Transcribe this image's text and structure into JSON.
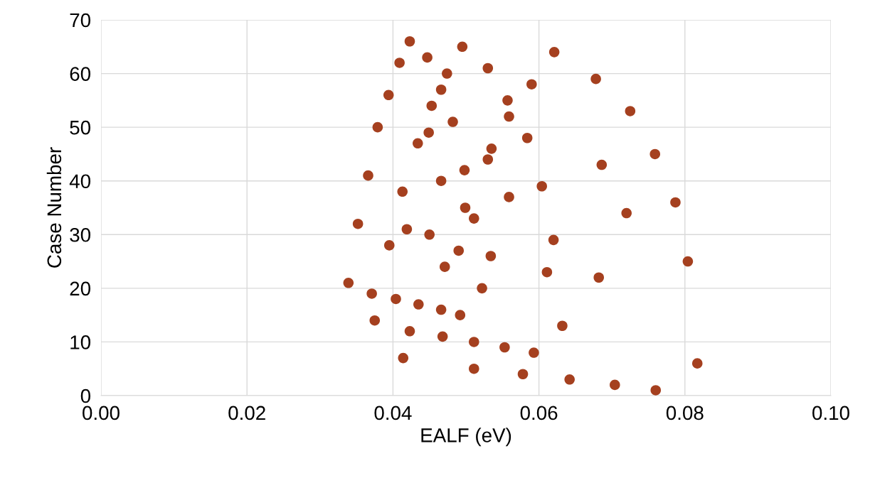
{
  "chart_data": {
    "type": "scatter",
    "xlabel": "EALF (eV)",
    "ylabel": "Case Number",
    "xlim": [
      0,
      0.1
    ],
    "xticks": [
      {
        "value": 0,
        "label": "0.00"
      },
      {
        "value": 0.02,
        "label": "0.02"
      },
      {
        "value": 0.04,
        "label": "0.04"
      },
      {
        "value": 0.06,
        "label": "0.06"
      },
      {
        "value": 0.08,
        "label": "0.08"
      },
      {
        "value": 0.1,
        "label": "0.10"
      }
    ],
    "ylim": [
      0,
      70
    ],
    "yticks": [
      0,
      10,
      20,
      30,
      40,
      50,
      60,
      70
    ],
    "grid": true,
    "marker": "circle",
    "series": [
      {
        "color": "#a5401f",
        "x": [
          0.076,
          0.0704,
          0.0642,
          0.0578,
          0.0511,
          0.0817,
          0.0414,
          0.0593,
          0.0553,
          0.0511,
          0.0468,
          0.0423,
          0.0632,
          0.0375,
          0.0492,
          0.0466,
          0.0435,
          0.0404,
          0.0371,
          0.0522,
          0.0339,
          0.0682,
          0.0611,
          0.0471,
          0.0804,
          0.0534,
          0.049,
          0.0395,
          0.062,
          0.045,
          0.0419,
          0.0352,
          0.0511,
          0.072,
          0.0499,
          0.0787,
          0.0559,
          0.0413,
          0.0604,
          0.0466,
          0.0366,
          0.0498,
          0.0686,
          0.053,
          0.0759,
          0.0535,
          0.0434,
          0.0584,
          0.0449,
          0.0379,
          0.0482,
          0.0559,
          0.0725,
          0.0453,
          0.0557,
          0.0394,
          0.0466,
          0.059,
          0.0678,
          0.0474,
          0.053,
          0.0409,
          0.0447,
          0.0621,
          0.0495,
          0.0423
        ],
        "values": [
          1,
          2,
          3,
          4,
          5,
          6,
          7,
          8,
          9,
          10,
          11,
          12,
          13,
          14,
          15,
          16,
          17,
          18,
          19,
          20,
          21,
          22,
          23,
          24,
          25,
          26,
          27,
          28,
          29,
          30,
          31,
          32,
          33,
          34,
          35,
          36,
          37,
          38,
          39,
          40,
          41,
          42,
          43,
          44,
          45,
          46,
          47,
          48,
          49,
          50,
          51,
          52,
          53,
          54,
          55,
          56,
          57,
          58,
          59,
          60,
          61,
          62,
          63,
          64,
          65,
          66
        ]
      }
    ]
  }
}
